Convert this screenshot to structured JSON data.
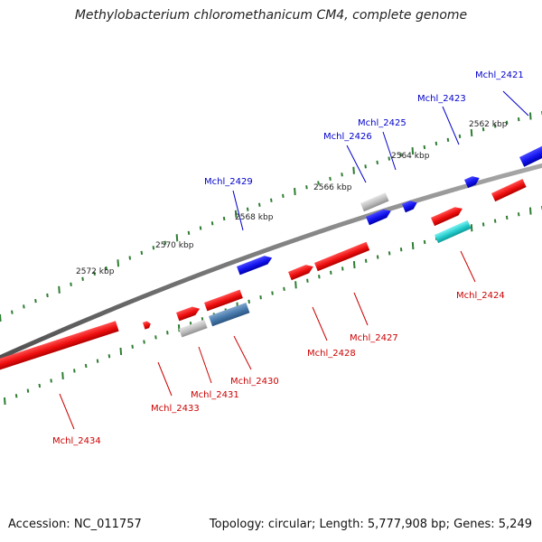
{
  "title": "Methylobacterium chloromethanicum CM4, complete genome",
  "footer": {
    "accession": "Accession: NC_011757",
    "summary": "Topology: circular; Length: 5,777,908 bp; Genes: 5,249"
  },
  "colors": {
    "background": "#ffffff",
    "backbone": "#7a7a7a",
    "tick": "#2e7d32",
    "forward_label": "#0000cc",
    "reverse_label": "#cc0000",
    "forward_gene": "#1a1aee",
    "reverse_gene": "#ee1111",
    "other_gene": "#b4b4b4",
    "steelblue_gene": "#4477aa",
    "cyan_gene": "#22cccc"
  },
  "chart_data": {
    "type": "genome-map",
    "axis_labels": [
      "2562 kbp",
      "2564 kbp",
      "2566 kbp",
      "2568 kbp",
      "2570 kbp",
      "2572 kbp"
    ],
    "forward_labels": [
      "Mchl_2421",
      "Mchl_2423",
      "Mchl_2425",
      "Mchl_2426",
      "Mchl_2429"
    ],
    "reverse_labels": [
      "Mchl_2424",
      "Mchl_2427",
      "Mchl_2428",
      "Mchl_2430",
      "Mchl_2431",
      "Mchl_2433",
      "Mchl_2434"
    ]
  }
}
